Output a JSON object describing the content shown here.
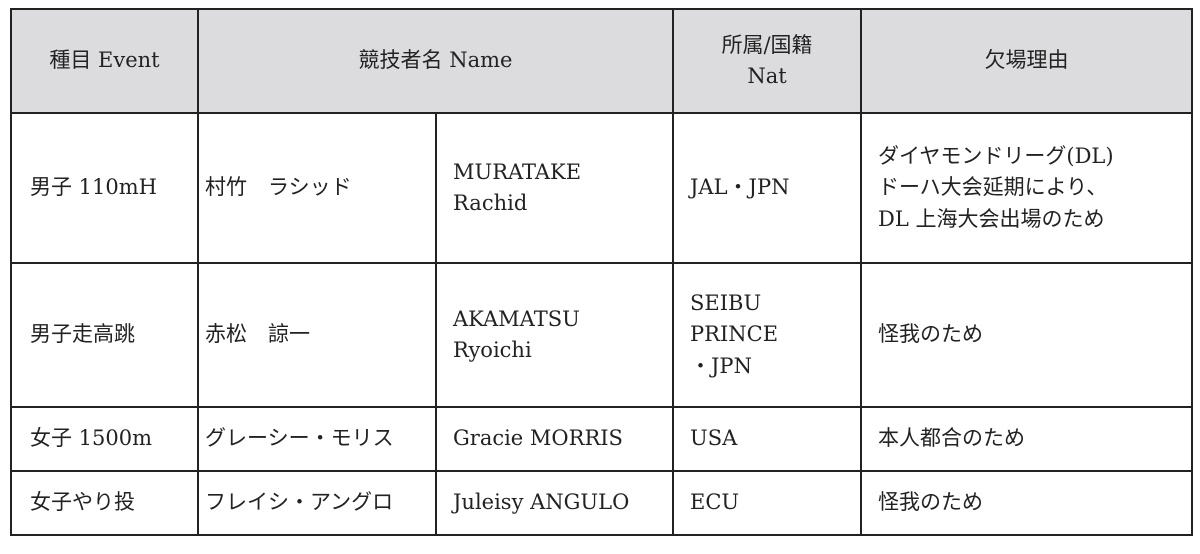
{
  "header": {
    "event": "種目 Event",
    "name": "競技者名 Name",
    "nat_line1": "所属/国籍",
    "nat_line2": "Nat",
    "reason": "欠場理由"
  },
  "rows": [
    {
      "event": "男子 110mH",
      "name_jp": "村竹　ラシッド",
      "name_en": [
        "MURATAKE",
        "Rachid"
      ],
      "nat": [
        "JAL・JPN"
      ],
      "reason": [
        "ダイヤモンドリーグ(DL)",
        "ドーハ大会延期により、",
        "DL 上海大会出場のため"
      ]
    },
    {
      "event": "男子走高跳",
      "name_jp": "赤松　諒一",
      "name_en": [
        "AKAMATSU",
        "Ryoichi"
      ],
      "nat": [
        "SEIBU",
        "PRINCE",
        "・JPN"
      ],
      "reason": [
        "怪我のため"
      ]
    },
    {
      "event": "女子 1500m",
      "name_jp": "グレーシー・モリス",
      "name_en": [
        "Gracie MORRIS"
      ],
      "nat": [
        "USA"
      ],
      "reason": [
        "本人都合のため"
      ]
    },
    {
      "event": "女子やり投",
      "name_jp": "フレイシ・アングロ",
      "name_en": [
        "Juleisy ANGULO"
      ],
      "nat": [
        "ECU"
      ],
      "reason": [
        "怪我のため"
      ]
    }
  ],
  "colors": {
    "header_bg": "#dcdcdf",
    "border": "#222222"
  }
}
